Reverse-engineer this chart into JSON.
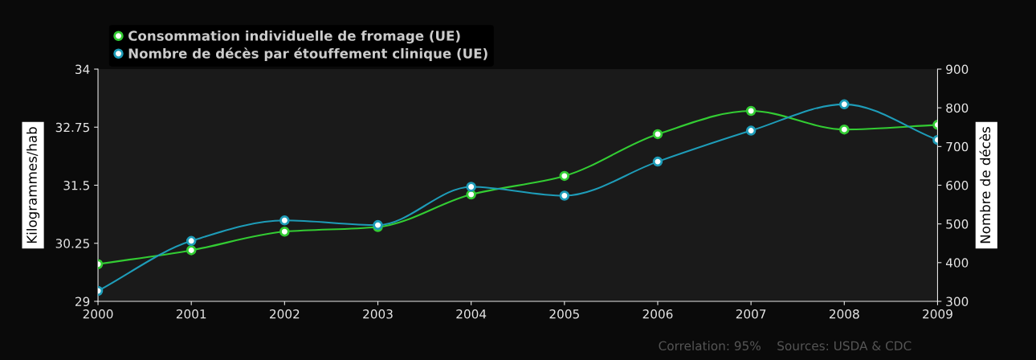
{
  "chart_data": {
    "type": "line",
    "x": [
      2000,
      2001,
      2002,
      2003,
      2004,
      2005,
      2006,
      2007,
      2008,
      2009
    ],
    "series": [
      {
        "name": "Consommation individuelle de fromage (UE)",
        "color": "#33cc33",
        "values": [
          29.8,
          30.1,
          30.5,
          30.6,
          31.3,
          31.7,
          32.6,
          33.1,
          32.7,
          32.8
        ]
      },
      {
        "name": "Nombre de décès par étouffement clinique (UE)",
        "color": "#1e9cb8",
        "axis": "y2",
        "values": [
          327,
          456,
          509,
          497,
          596,
          573,
          661,
          741,
          809,
          717
        ]
      }
    ],
    "xlim": [
      2000,
      2009
    ],
    "xticks": [
      2000,
      2001,
      2002,
      2003,
      2004,
      2005,
      2006,
      2007,
      2008,
      2009
    ],
    "ylim": [
      29,
      34
    ],
    "yticks": [
      29,
      30.25,
      31.5,
      32.75,
      34
    ],
    "y2lim": [
      300,
      900
    ],
    "y2ticks": [
      300,
      400,
      500,
      600,
      700,
      800,
      900
    ],
    "ylabel": "Kilogrammes/hab",
    "y2label": "Nombre de décès",
    "annotations": [
      "Correlation: 95%",
      "Sources: USDA & CDC"
    ],
    "legend": "top left",
    "marker": "circle",
    "line_style": "solid",
    "grid": false
  }
}
